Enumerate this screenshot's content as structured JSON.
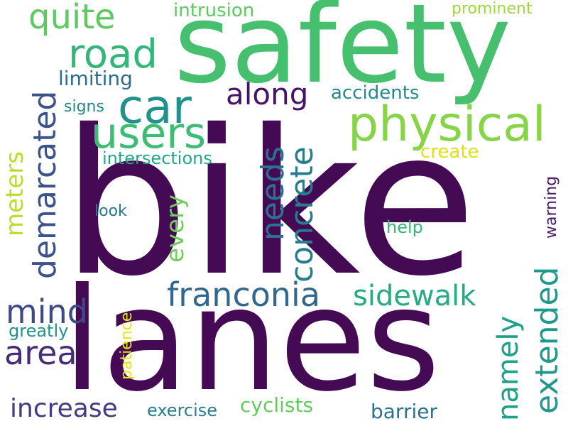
{
  "words": [
    {
      "key": "bike",
      "text": "bike",
      "color": "#440b54"
    },
    {
      "key": "lanes",
      "text": "lanes",
      "color": "#440b54"
    },
    {
      "key": "safety",
      "text": "safety",
      "color": "#46bf6f"
    },
    {
      "key": "users",
      "text": "users",
      "color": "#3fbc73"
    },
    {
      "key": "car",
      "text": "car",
      "color": "#20928c"
    },
    {
      "key": "physical",
      "text": "physical",
      "color": "#86d549"
    },
    {
      "key": "road",
      "text": "road",
      "color": "#34b678"
    },
    {
      "key": "quite",
      "text": "quite",
      "color": "#5ec962"
    },
    {
      "key": "along",
      "text": "along",
      "color": "#471365"
    },
    {
      "key": "demarcated",
      "text": "demarcated",
      "color": "#3b528b"
    },
    {
      "key": "meters",
      "text": "meters",
      "color": "#bade28"
    },
    {
      "key": "every",
      "text": "every",
      "color": "#6ece58"
    },
    {
      "key": "needs",
      "text": "needs",
      "color": "#2c728e"
    },
    {
      "key": "concrete",
      "text": "concrete",
      "color": "#287c8e"
    },
    {
      "key": "franconia",
      "text": "franconia",
      "color": "#31688e"
    },
    {
      "key": "sidewalk",
      "text": "sidewalk",
      "color": "#25ac82"
    },
    {
      "key": "mind",
      "text": "mind",
      "color": "#3e4989"
    },
    {
      "key": "area",
      "text": "area",
      "color": "#472c7a"
    },
    {
      "key": "namely",
      "text": "namely",
      "color": "#1fa088"
    },
    {
      "key": "extended",
      "text": "extended",
      "color": "#1f9a8a"
    },
    {
      "key": "increase",
      "text": "increase",
      "color": "#443983"
    },
    {
      "key": "cyclists",
      "text": "cyclists",
      "color": "#65cb5e"
    },
    {
      "key": "barrier",
      "text": "barrier",
      "color": "#2c718e"
    },
    {
      "key": "exercise",
      "text": "exercise",
      "color": "#287d8e"
    },
    {
      "key": "greatly",
      "text": "greatly",
      "color": "#21918c"
    },
    {
      "key": "patience",
      "text": "patience",
      "color": "#e5e419"
    },
    {
      "key": "help",
      "text": "help",
      "color": "#35b779"
    },
    {
      "key": "warning",
      "text": "warning",
      "color": "#481a6c"
    },
    {
      "key": "look",
      "text": "look",
      "color": "#2a778e"
    },
    {
      "key": "intersections",
      "text": "intersections",
      "color": "#22a884"
    },
    {
      "key": "create",
      "text": "create",
      "color": "#dde318"
    },
    {
      "key": "accidents",
      "text": "accidents",
      "color": "#238a8d"
    },
    {
      "key": "limiting",
      "text": "limiting",
      "color": "#2e6d8e"
    },
    {
      "key": "signs",
      "text": "signs",
      "color": "#24878e"
    },
    {
      "key": "intrusion",
      "text": "intrusion",
      "color": "#5ec962"
    },
    {
      "key": "prominent",
      "text": "prominent",
      "color": "#9bd93c"
    }
  ]
}
